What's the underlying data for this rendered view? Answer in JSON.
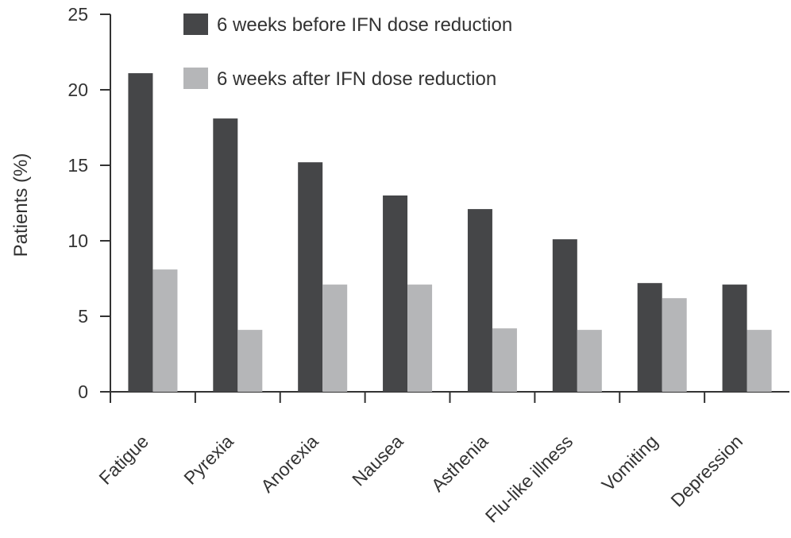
{
  "chart_data": {
    "type": "bar",
    "title": "",
    "xlabel": "",
    "ylabel": "Patients (%)",
    "ylim": [
      0,
      25
    ],
    "yticks": [
      0,
      5,
      10,
      15,
      20,
      25
    ],
    "categories": [
      "Fatigue",
      "Pyrexia",
      "Anorexia",
      "Nausea",
      "Asthenia",
      "Flu-like illness",
      "Vomiting",
      "Depression"
    ],
    "series": [
      {
        "name": "6 weeks before IFN dose reduction",
        "color": "#454648",
        "values": [
          21.1,
          18.1,
          15.2,
          13.0,
          12.1,
          10.1,
          7.2,
          7.1
        ]
      },
      {
        "name": "6 weeks after IFN dose reduction",
        "color": "#b5b6b8",
        "values": [
          8.1,
          4.1,
          7.1,
          7.1,
          4.2,
          4.1,
          6.2,
          4.1
        ]
      }
    ],
    "legend": "top",
    "grid": false
  }
}
